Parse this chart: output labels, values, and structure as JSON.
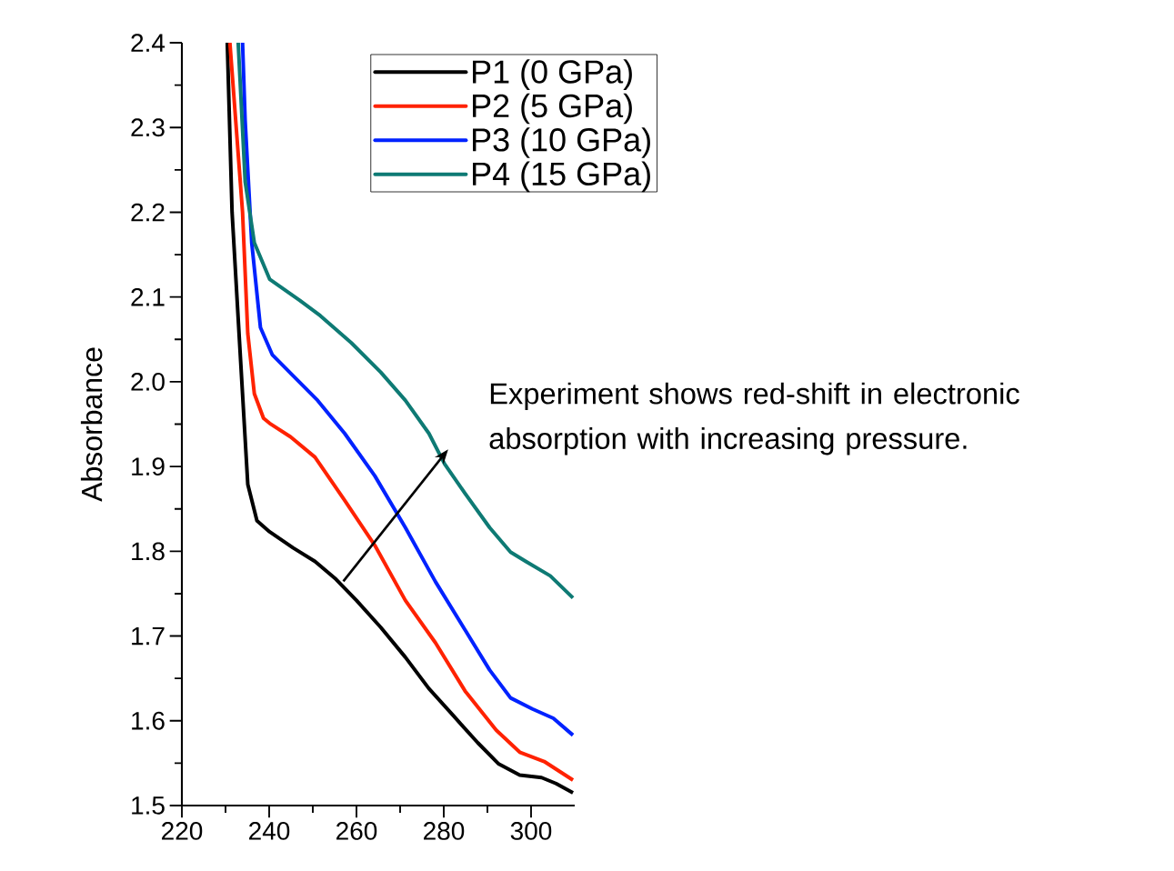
{
  "chart_data": {
    "type": "line",
    "ylabel": "Absorbance",
    "xlim": [
      220,
      310
    ],
    "ylim": [
      1.5,
      2.4
    ],
    "xticks": [
      220,
      240,
      260,
      280,
      300
    ],
    "yticks": [
      1.5,
      1.6,
      1.7,
      1.8,
      1.9,
      {
        "value": 2.0,
        "label": "2.0"
      },
      2.1,
      2.2,
      2.3,
      2.4
    ],
    "legend": "top right",
    "line_style": "solid",
    "marker": "none",
    "annotations": [
      "Experiment shows red-shift in electronic absorption with increasing pressure."
    ],
    "series": [
      {
        "name": "P1  (0 GPa)",
        "color": "#000000",
        "x": [
          230.4,
          231.5,
          233.5,
          235.1,
          237.2,
          240.1,
          245.5,
          250.5,
          255.3,
          260.0,
          265.6,
          271.2,
          276.6,
          282.2,
          287.8,
          292.6,
          297.4,
          302.4,
          305.7,
          309.6
        ],
        "values": [
          2.4,
          2.2,
          2.021,
          1.879,
          1.836,
          1.823,
          1.804,
          1.788,
          1.767,
          1.742,
          1.71,
          1.675,
          1.638,
          1.606,
          1.574,
          1.549,
          1.536,
          1.533,
          1.526,
          1.515
        ]
      },
      {
        "name": "P2  (5 GPa)",
        "color": "#ff2200",
        "x": [
          231.0,
          233.9,
          235.1,
          236.6,
          238.7,
          240.1,
          244.9,
          250.5,
          257.3,
          264.2,
          271.2,
          278.1,
          284.9,
          292.0,
          297.4,
          303.0,
          309.6
        ],
        "values": [
          2.4,
          2.2,
          2.057,
          1.986,
          1.957,
          1.951,
          1.935,
          1.911,
          1.86,
          1.807,
          1.742,
          1.692,
          1.635,
          1.589,
          1.563,
          1.552,
          1.53
        ]
      },
      {
        "name": "P3  (10 GPa)",
        "color": "#0022ff",
        "x": [
          233.9,
          234.5,
          236.0,
          238.0,
          240.7,
          245.5,
          251.1,
          257.3,
          264.2,
          271.2,
          278.1,
          284.9,
          290.5,
          295.3,
          300.3,
          305.1,
          309.6
        ],
        "values": [
          2.4,
          2.308,
          2.164,
          2.064,
          2.032,
          2.007,
          1.978,
          1.939,
          1.889,
          1.828,
          1.764,
          1.707,
          1.66,
          1.627,
          1.614,
          1.603,
          1.583
        ]
      },
      {
        "name": "P4  (15 GPa)",
        "color": "#0e7a74",
        "x": [
          232.9,
          234.5,
          236.6,
          240.1,
          247.0,
          251.7,
          258.8,
          265.6,
          271.2,
          276.6,
          280.2,
          284.9,
          290.5,
          295.3,
          298.8,
          304.4,
          309.6
        ],
        "values": [
          2.4,
          2.236,
          2.164,
          2.121,
          2.096,
          2.078,
          2.046,
          2.011,
          1.978,
          1.939,
          1.903,
          1.868,
          1.828,
          1.799,
          1.788,
          1.771,
          1.745
        ]
      }
    ]
  }
}
